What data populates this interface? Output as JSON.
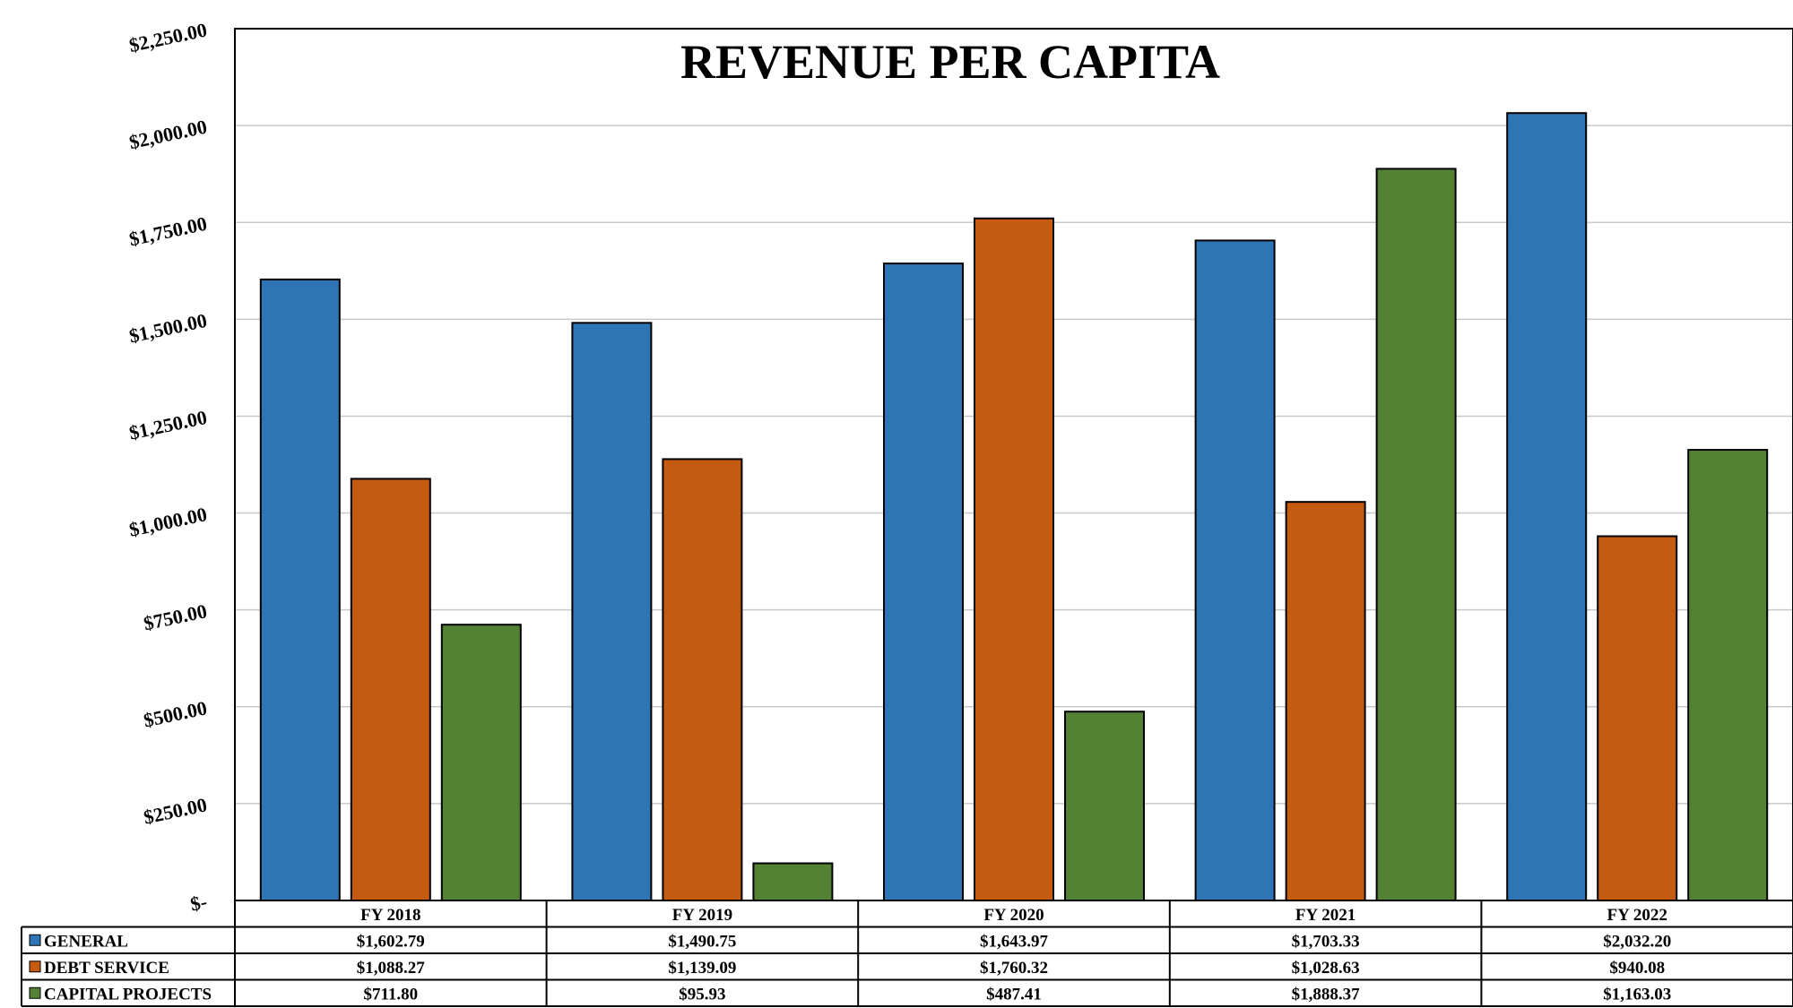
{
  "chart_data": {
    "type": "bar",
    "title": "REVENUE PER CAPITA",
    "categories": [
      "FY 2018",
      "FY 2019",
      "FY 2020",
      "FY 2021",
      "FY 2022"
    ],
    "series": [
      {
        "name": "GENERAL",
        "color": "#2E75B6",
        "values": [
          1602.79,
          1490.75,
          1643.97,
          1703.33,
          2032.2
        ],
        "labels": [
          "$1,602.79",
          "$1,490.75",
          "$1,643.97",
          "$1,703.33",
          "$2,032.20"
        ]
      },
      {
        "name": "DEBT SERVICE",
        "color": "#C55A11",
        "values": [
          1088.27,
          1139.09,
          1760.32,
          1028.63,
          940.08
        ],
        "labels": [
          "$1,088.27",
          "$1,139.09",
          "$1,760.32",
          "$1,028.63",
          "$940.08"
        ]
      },
      {
        "name": "CAPITAL PROJECTS",
        "color": "#548235",
        "values": [
          711.8,
          95.93,
          487.41,
          1888.37,
          1163.03
        ],
        "labels": [
          "$711.80",
          "$95.93",
          "$487.41",
          "$1,888.37",
          "$1,163.03"
        ]
      }
    ],
    "ylim": [
      0,
      2250
    ],
    "yticks": [
      0,
      250,
      500,
      750,
      1000,
      1250,
      1500,
      1750,
      2000,
      2250
    ],
    "ytick_labels": [
      "$-",
      "$250.00",
      "$500.00",
      "$750.00",
      "$1,000.00",
      "$1,250.00",
      "$1,500.00",
      "$1,750.00",
      "$2,000.00",
      "$2,250.00"
    ],
    "grid": true,
    "legend": "data-table"
  }
}
